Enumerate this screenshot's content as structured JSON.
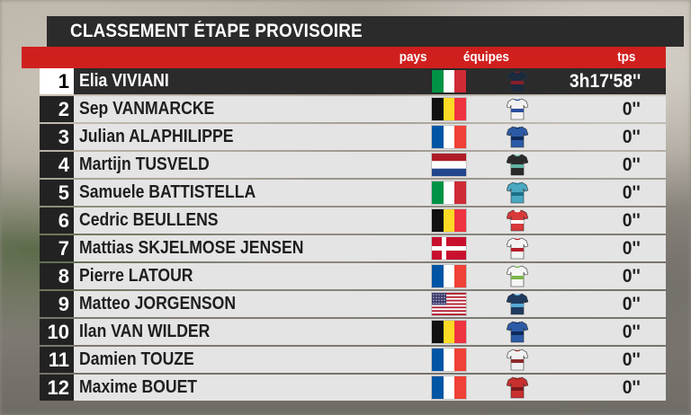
{
  "title": "CLASSEMENT ÉTAPE PROVISOIRE",
  "headers": {
    "pays": "pays",
    "equipes": "équipes",
    "tps": "tps"
  },
  "colors": {
    "accent_red": "#d0201e",
    "title_bg": "#2b2b2b",
    "row_bg": "#e4e4e4"
  },
  "rows": [
    {
      "rank": "1",
      "name": "Elia VIVIANI",
      "flag": "italy",
      "jersey": "ineos-jersey",
      "time": "3h17'58''"
    },
    {
      "rank": "2",
      "name": "Sep VANMARCKE",
      "flag": "belgium",
      "jersey": "israel-jersey",
      "time": "0''"
    },
    {
      "rank": "3",
      "name": "Julian ALAPHILIPPE",
      "flag": "france",
      "jersey": "quickstep-jersey",
      "time": "0''"
    },
    {
      "rank": "4",
      "name": "Martijn TUSVELD",
      "flag": "netherlands",
      "jersey": "dsm-jersey",
      "time": "0''"
    },
    {
      "rank": "5",
      "name": "Samuele BATTISTELLA",
      "flag": "italy",
      "jersey": "astana-jersey",
      "time": "0''"
    },
    {
      "rank": "6",
      "name": "Cedric BEULLENS",
      "flag": "belgium",
      "jersey": "lotto-jersey",
      "time": "0''"
    },
    {
      "rank": "7",
      "name": "Mattias SKJELMOSE JENSEN",
      "flag": "denmark",
      "jersey": "trek-jersey",
      "time": "0''"
    },
    {
      "rank": "8",
      "name": "Pierre LATOUR",
      "flag": "france",
      "jersey": "totalenergies-jersey",
      "time": "0''"
    },
    {
      "rank": "9",
      "name": "Matteo JORGENSON",
      "flag": "usa",
      "jersey": "movistar-jersey",
      "time": "0''"
    },
    {
      "rank": "10",
      "name": "Ilan VAN WILDER",
      "flag": "belgium",
      "jersey": "quickstep-jersey",
      "time": "0''"
    },
    {
      "rank": "11",
      "name": "Damien TOUZE",
      "flag": "france",
      "jersey": "ag2r-jersey",
      "time": "0''"
    },
    {
      "rank": "12",
      "name": "Maxime BOUET",
      "flag": "france",
      "jersey": "arkea-jersey",
      "time": "0''"
    }
  ]
}
